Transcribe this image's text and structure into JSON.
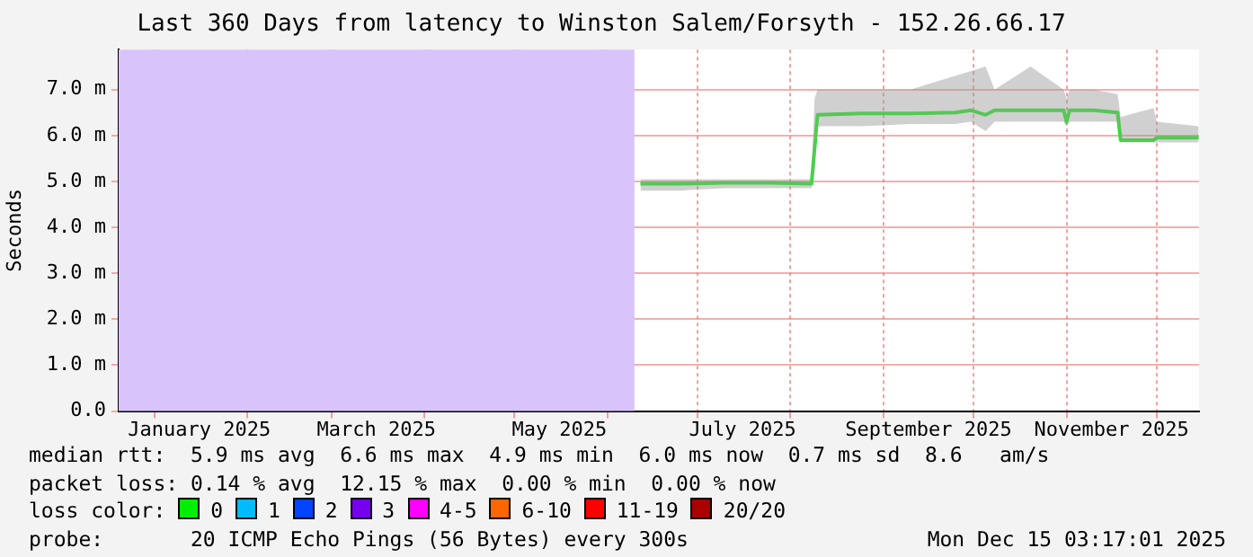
{
  "chart_data": {
    "type": "line",
    "title": "Last 360 Days from latency to Winston Salem/Forsyth - 152.26.66.17",
    "ylabel": "Seconds",
    "xlim": [
      "2024-12-20T03:17",
      "2025-12-15T03:17"
    ],
    "xticks": [
      {
        "value": "2025-01-01",
        "label": null
      },
      {
        "value": "2025-01-16",
        "label": "January 2025"
      },
      {
        "value": "2025-02-01",
        "label": null
      },
      {
        "value": "2025-03-01",
        "label": null
      },
      {
        "value": "2025-03-16",
        "label": "March 2025"
      },
      {
        "value": "2025-04-01",
        "label": null
      },
      {
        "value": "2025-05-01",
        "label": null
      },
      {
        "value": "2025-05-16",
        "label": "May 2025"
      },
      {
        "value": "2025-06-01",
        "label": null
      },
      {
        "value": "2025-07-01",
        "label": null
      },
      {
        "value": "2025-07-16",
        "label": "July 2025"
      },
      {
        "value": "2025-08-01",
        "label": null
      },
      {
        "value": "2025-09-01",
        "label": null
      },
      {
        "value": "2025-09-16",
        "label": "September 2025"
      },
      {
        "value": "2025-10-01",
        "label": null
      },
      {
        "value": "2025-11-01",
        "label": null
      },
      {
        "value": "2025-11-16",
        "label": "November 2025"
      },
      {
        "value": "2025-12-01",
        "label": null
      }
    ],
    "ylim": [
      0,
      7.87
    ],
    "yticks": [
      {
        "value": 0,
        "label": "0.0"
      },
      {
        "value": 1,
        "label": "1.0 m"
      },
      {
        "value": 2,
        "label": "2.0 m"
      },
      {
        "value": 3,
        "label": "3.0 m"
      },
      {
        "value": 4,
        "label": "4.0 m"
      },
      {
        "value": 5,
        "label": "5.0 m"
      },
      {
        "value": 6,
        "label": "6.0 m"
      },
      {
        "value": 7,
        "label": "7.0 m"
      }
    ],
    "grid": true,
    "legend": false,
    "marker": "none",
    "line_style": "solid",
    "bands": [
      {
        "axis": "x",
        "from": "2024-12-20T03:17",
        "to": "2025-06-10",
        "color": "#d8c4fa"
      }
    ],
    "series": [
      {
        "color": "#22ee22",
        "x": [
          "2025-06-12",
          "2025-06-25",
          "2025-07-10",
          "2025-07-25",
          "2025-08-08",
          "2025-08-09",
          "2025-08-10",
          "2025-08-25",
          "2025-09-10",
          "2025-09-25",
          "2025-09-30",
          "2025-10-05",
          "2025-10-08",
          "2025-10-20",
          "2025-10-31",
          "2025-11-01",
          "2025-11-02",
          "2025-11-10",
          "2025-11-18",
          "2025-11-19",
          "2025-11-30",
          "2025-12-01",
          "2025-12-15"
        ],
        "values": [
          4.95,
          4.95,
          4.97,
          4.97,
          4.95,
          5.7,
          6.45,
          6.48,
          6.48,
          6.5,
          6.55,
          6.45,
          6.55,
          6.55,
          6.55,
          6.3,
          6.55,
          6.55,
          6.5,
          5.9,
          5.9,
          5.95,
          5.95
        ],
        "lower": [
          4.8,
          4.8,
          4.85,
          4.85,
          4.85,
          5.2,
          6.2,
          6.2,
          6.25,
          6.25,
          6.3,
          6.1,
          6.3,
          6.3,
          6.3,
          6.2,
          6.3,
          6.3,
          6.3,
          5.85,
          5.85,
          5.85,
          5.85
        ],
        "upper": [
          5.05,
          5.05,
          5.05,
          5.05,
          5.05,
          6.8,
          7.0,
          7.0,
          7.0,
          7.3,
          7.4,
          7.5,
          7.0,
          7.5,
          7.0,
          6.8,
          7.0,
          7.0,
          6.9,
          6.4,
          6.6,
          6.3,
          6.2
        ]
      }
    ],
    "annotations": [
      "median rtt:  5.9 ms avg  6.6 ms max  4.9 ms min  6.0 ms now  0.7 ms sd  8.6   am/s",
      "packet loss: 0.14 % avg  12.15 % max  0.00 % min  0.00 % now",
      "loss color:",
      "0",
      "1",
      "2",
      "3",
      "4-5",
      "6-10",
      "11-19",
      "20/20",
      "probe:       20 ICMP Echo Pings (56 Bytes) every 300s",
      "Mon Dec 15 03:17:01 2025"
    ]
  }
}
